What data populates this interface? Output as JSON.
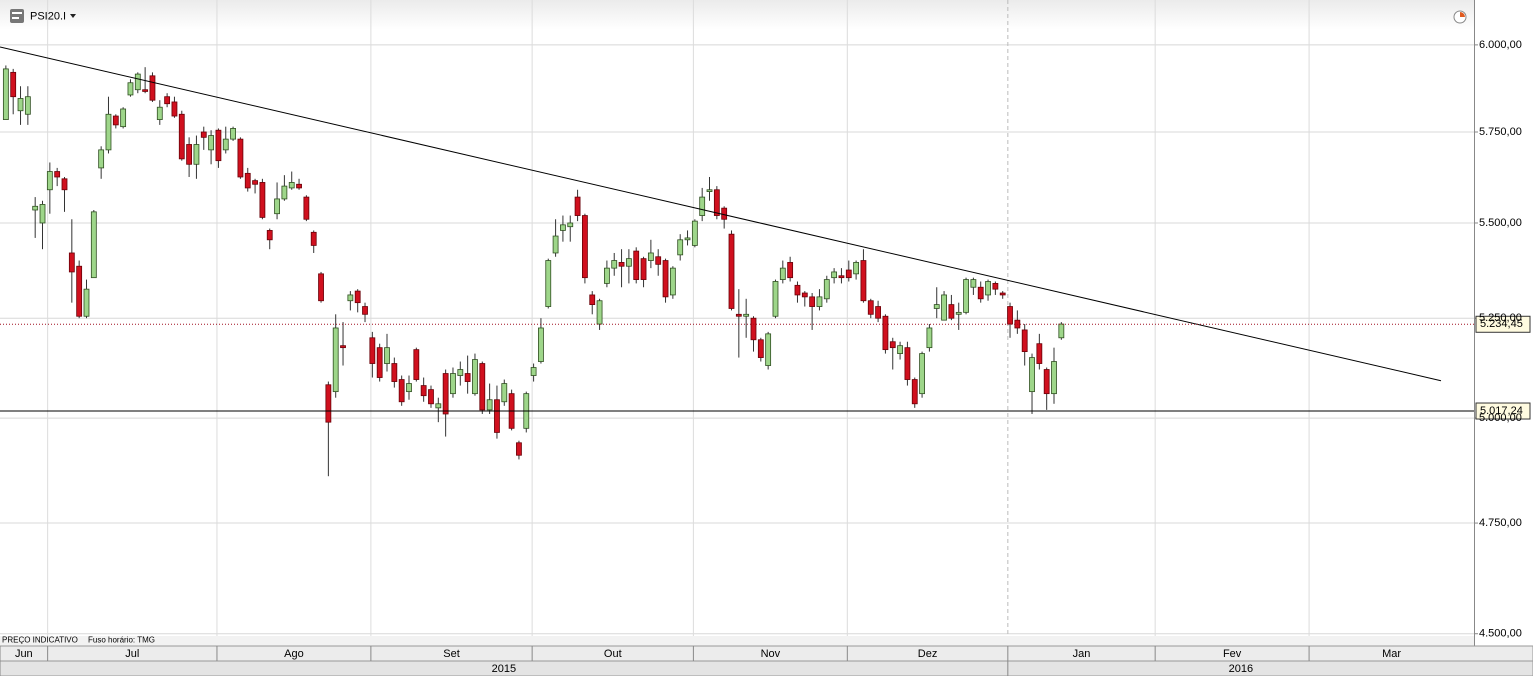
{
  "header": {
    "symbol": "PSI20.I"
  },
  "footer_note": [
    "PREÇO INDICATIVO",
    "Fuso horário: TMG"
  ],
  "chart_data": {
    "type": "candlestick",
    "log_scale": true,
    "grid": true,
    "ylim": [
      4495,
      6133
    ],
    "yticks": [
      {
        "value": 4500,
        "label": "4.500,00"
      },
      {
        "value": 4750,
        "label": "4.750,00"
      },
      {
        "value": 5000,
        "label": "5.000,00"
      },
      {
        "value": 5250,
        "label": "5.250,00"
      },
      {
        "value": 5500,
        "label": "5.500,00"
      },
      {
        "value": 5750,
        "label": "5.750,00"
      },
      {
        "value": 6000,
        "label": "6.000,00"
      }
    ],
    "xlim": [
      -0.8,
      200.3
    ],
    "xticks": [
      {
        "value": -0.8,
        "label": "Jun"
      },
      {
        "value": 5.7,
        "label": "Jul"
      },
      {
        "value": 28.8,
        "label": "Ago"
      },
      {
        "value": 49.8,
        "label": "Set"
      },
      {
        "value": 71.8,
        "label": "Out"
      },
      {
        "value": 93.8,
        "label": "Nov"
      },
      {
        "value": 114.8,
        "label": "Dez"
      },
      {
        "value": 136.7,
        "label": "Jan"
      },
      {
        "value": 156.8,
        "label": "Fev"
      },
      {
        "value": 177.8,
        "label": "Mar"
      }
    ],
    "year_ticks": [
      {
        "value": -0.8,
        "label": "2015"
      },
      {
        "value": 136.7,
        "label": "2016"
      }
    ],
    "up_color": "#9ed68a",
    "down_color": "#d0101e",
    "open": [
      5785,
      5920,
      5810,
      5800,
      5535,
      5500,
      5590,
      5640,
      5620,
      5420,
      5385,
      5255,
      5355,
      5650,
      5700,
      5795,
      5765,
      5855,
      5870,
      5870,
      5910,
      5785,
      5850,
      5835,
      5800,
      5715,
      5660,
      5750,
      5700,
      5755,
      5700,
      5730,
      5730,
      5635,
      5615,
      5610,
      5480,
      5525,
      5565,
      5595,
      5605,
      5570,
      5475,
      5365,
      5082,
      5065,
      5180,
      5295,
      5320,
      5280,
      5200,
      5175,
      5135,
      5135,
      5095,
      5065,
      5170,
      5080,
      5070,
      5025,
      5110,
      5060,
      5105,
      5110,
      5060,
      5135,
      5020,
      5045,
      5040,
      5060,
      4940,
      4975,
      5105,
      5140,
      5280,
      5420,
      5480,
      5490,
      5570,
      5520,
      5310,
      5235,
      5340,
      5380,
      5395,
      5385,
      5425,
      5405,
      5400,
      5410,
      5400,
      5310,
      5415,
      5455,
      5440,
      5520,
      5585,
      5590,
      5540,
      5470,
      5260,
      5255,
      5250,
      5195,
      5130,
      5255,
      5350,
      5395,
      5335,
      5315,
      5305,
      5280,
      5300,
      5355,
      5360,
      5375,
      5365,
      5400,
      5295,
      5280,
      5255,
      5190,
      5160,
      5175,
      5095,
      5060,
      5175,
      5275,
      5245,
      5285,
      5260,
      5265,
      5330,
      5330,
      5310,
      5340,
      5315,
      5280,
      5245,
      5220,
      5065,
      5185,
      5120,
      5060,
      5200
    ],
    "high": [
      5940,
      5930,
      5880,
      5880,
      5570,
      5560,
      5665,
      5650,
      5625,
      5510,
      5400,
      5350,
      5535,
      5710,
      5850,
      5800,
      5820,
      5900,
      5920,
      5935,
      5920,
      5840,
      5860,
      5850,
      5810,
      5735,
      5740,
      5765,
      5755,
      5760,
      5765,
      5765,
      5735,
      5650,
      5620,
      5620,
      5485,
      5610,
      5630,
      5640,
      5620,
      5575,
      5480,
      5370,
      5090,
      5260,
      5240,
      5320,
      5325,
      5290,
      5215,
      5185,
      5210,
      5150,
      5105,
      5105,
      5175,
      5100,
      5080,
      5050,
      5120,
      5125,
      5140,
      5155,
      5160,
      5140,
      5085,
      5080,
      5095,
      5070,
      4945,
      5065,
      5135,
      5250,
      5405,
      5510,
      5520,
      5520,
      5590,
      5525,
      5320,
      5300,
      5400,
      5420,
      5430,
      5430,
      5435,
      5410,
      5455,
      5430,
      5405,
      5385,
      5470,
      5480,
      5510,
      5595,
      5625,
      5600,
      5545,
      5480,
      5325,
      5300,
      5255,
      5200,
      5215,
      5350,
      5400,
      5410,
      5345,
      5320,
      5315,
      5325,
      5360,
      5380,
      5380,
      5400,
      5400,
      5430,
      5300,
      5295,
      5260,
      5200,
      5190,
      5190,
      5100,
      5165,
      5235,
      5330,
      5320,
      5310,
      5290,
      5355,
      5355,
      5345,
      5350,
      5345,
      5320,
      5290,
      5270,
      5235,
      5160,
      5210,
      5125,
      5175,
      5240
    ],
    "low": [
      5785,
      5800,
      5770,
      5770,
      5460,
      5430,
      5525,
      5600,
      5530,
      5290,
      5250,
      5250,
      5355,
      5620,
      5690,
      5760,
      5760,
      5850,
      5860,
      5860,
      5835,
      5770,
      5820,
      5790,
      5670,
      5625,
      5620,
      5700,
      5660,
      5650,
      5690,
      5725,
      5620,
      5585,
      5580,
      5510,
      5430,
      5510,
      5560,
      5590,
      5590,
      5505,
      5420,
      5290,
      4860,
      5050,
      5130,
      5270,
      5265,
      5240,
      5100,
      5090,
      5115,
      5075,
      5030,
      5045,
      5090,
      5040,
      5025,
      4990,
      4955,
      5050,
      5080,
      5060,
      5055,
      5010,
      5010,
      4950,
      5030,
      4970,
      4900,
      4965,
      5090,
      5135,
      5275,
      5410,
      5450,
      5450,
      5505,
      5340,
      5260,
      5220,
      5330,
      5360,
      5330,
      5340,
      5340,
      5330,
      5380,
      5360,
      5290,
      5300,
      5400,
      5440,
      5435,
      5505,
      5560,
      5510,
      5485,
      5270,
      5150,
      5200,
      5165,
      5140,
      5120,
      5250,
      5340,
      5345,
      5290,
      5280,
      5220,
      5270,
      5290,
      5340,
      5340,
      5345,
      5350,
      5290,
      5250,
      5240,
      5160,
      5120,
      5145,
      5080,
      5025,
      5050,
      5165,
      5250,
      5245,
      5245,
      5220,
      5260,
      5310,
      5290,
      5295,
      5310,
      5300,
      5200,
      5210,
      5130,
      5010,
      5120,
      5020,
      5035,
      5195
    ],
    "close": [
      5930,
      5850,
      5845,
      5850,
      5545,
      5550,
      5640,
      5625,
      5590,
      5370,
      5255,
      5325,
      5530,
      5700,
      5800,
      5770,
      5815,
      5890,
      5915,
      5865,
      5840,
      5820,
      5830,
      5795,
      5675,
      5660,
      5715,
      5735,
      5740,
      5670,
      5730,
      5760,
      5625,
      5595,
      5605,
      5515,
      5455,
      5565,
      5600,
      5610,
      5595,
      5510,
      5440,
      5295,
      4990,
      5225,
      5175,
      5310,
      5290,
      5260,
      5135,
      5100,
      5175,
      5090,
      5040,
      5085,
      5095,
      5055,
      5035,
      5035,
      5010,
      5110,
      5120,
      5090,
      5145,
      5020,
      5045,
      4965,
      5085,
      4975,
      4910,
      5060,
      5125,
      5225,
      5400,
      5465,
      5495,
      5500,
      5520,
      5355,
      5285,
      5295,
      5380,
      5400,
      5385,
      5405,
      5350,
      5350,
      5420,
      5390,
      5305,
      5380,
      5455,
      5460,
      5505,
      5570,
      5590,
      5520,
      5510,
      5275,
      5255,
      5260,
      5195,
      5150,
      5210,
      5345,
      5380,
      5355,
      5310,
      5305,
      5280,
      5305,
      5350,
      5370,
      5355,
      5355,
      5395,
      5295,
      5260,
      5250,
      5170,
      5175,
      5180,
      5095,
      5035,
      5160,
      5225,
      5285,
      5310,
      5250,
      5265,
      5350,
      5350,
      5300,
      5345,
      5325,
      5310,
      5235,
      5225,
      5165,
      5150,
      5135,
      5060,
      5140,
      5235
    ],
    "trendline": {
      "x": [
        -0.8,
        195.8
      ],
      "y": [
        5994,
        5092
      ],
      "color": "#000000"
    },
    "price_lines": [
      {
        "value": 5234.45,
        "label": "5.234,45",
        "color": "#a01020",
        "style": "dotted"
      },
      {
        "value": 5017.24,
        "label": "5.017,24",
        "color": "#000000",
        "style": "solid"
      }
    ]
  }
}
